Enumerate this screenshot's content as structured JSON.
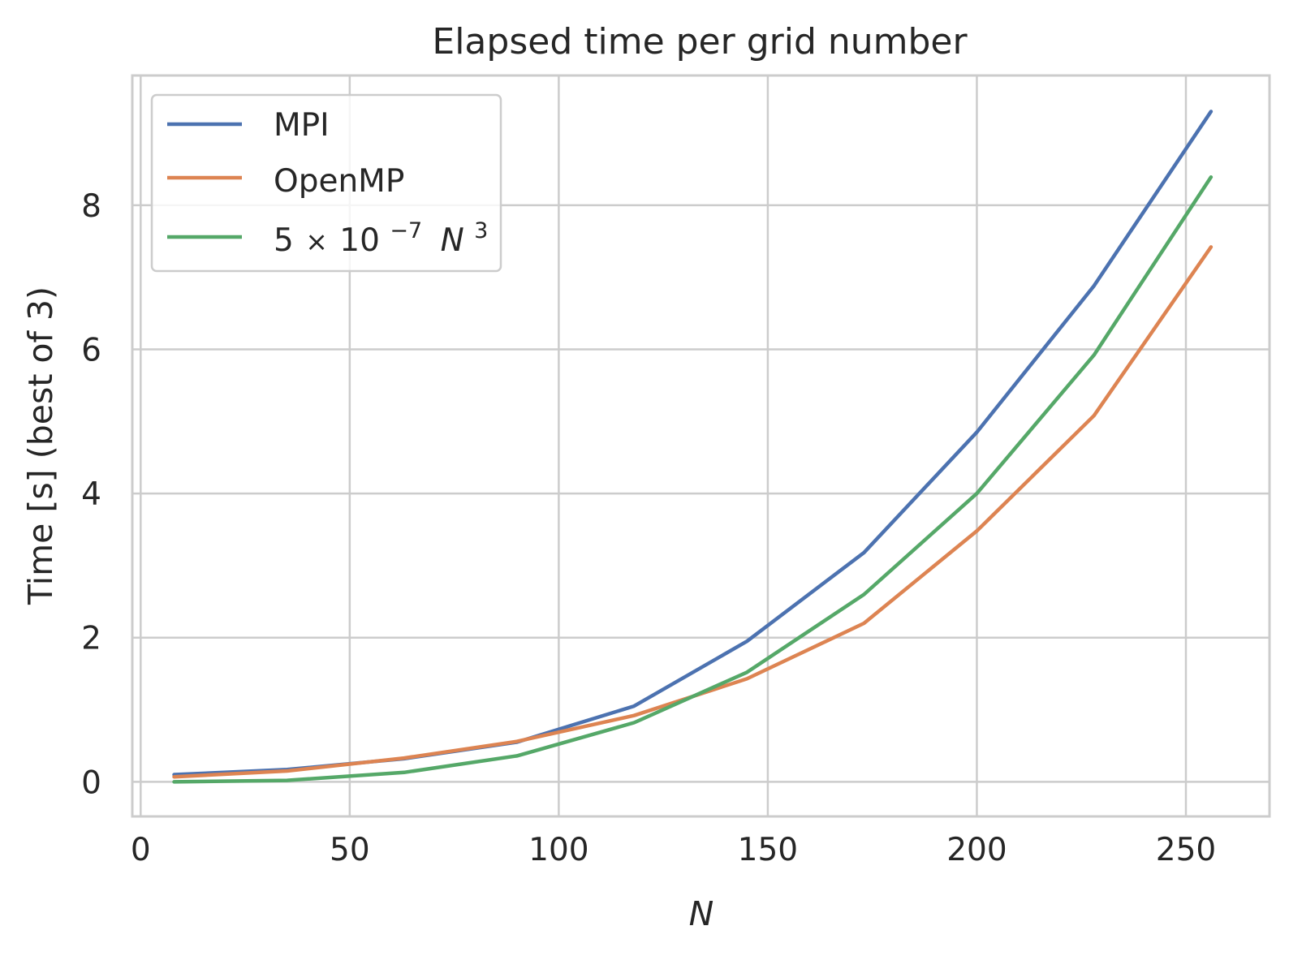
{
  "chart_data": {
    "type": "line",
    "title": "Elapsed time per grid number",
    "xlabel": "N",
    "ylabel": "Time [s] (best of 3)",
    "xlim": [
      -2,
      270
    ],
    "ylim": [
      -0.48,
      9.8
    ],
    "xticks": [
      0,
      50,
      100,
      150,
      200,
      250
    ],
    "yticks": [
      0,
      2,
      4,
      6,
      8
    ],
    "xtick_labels": [
      "0",
      "50",
      "100",
      "150",
      "200",
      "250"
    ],
    "ytick_labels": [
      "0",
      "2",
      "4",
      "6",
      "8"
    ],
    "grid": true,
    "legend_position": "top-left",
    "x": [
      8,
      35,
      63,
      90,
      118,
      145,
      173,
      200,
      228,
      256
    ],
    "series": [
      {
        "name": "MPI",
        "color": "#4c72b0",
        "values": [
          0.1,
          0.17,
          0.32,
          0.55,
          1.05,
          1.95,
          3.18,
          4.85,
          6.88,
          9.3
        ]
      },
      {
        "name": "OpenMP",
        "color": "#dd8452",
        "values": [
          0.07,
          0.15,
          0.33,
          0.56,
          0.92,
          1.43,
          2.2,
          3.48,
          5.08,
          7.42
        ]
      },
      {
        "name": "5 × 10⁻⁷ N³",
        "legend_parts": {
          "coef": "5",
          "times": "×",
          "base": "10",
          "exp": "−7",
          "var": "N",
          "var_exp": "3"
        },
        "color": "#55a868",
        "values": [
          0.0,
          0.02,
          0.13,
          0.36,
          0.82,
          1.52,
          2.6,
          4.0,
          5.92,
          8.39
        ]
      }
    ]
  }
}
